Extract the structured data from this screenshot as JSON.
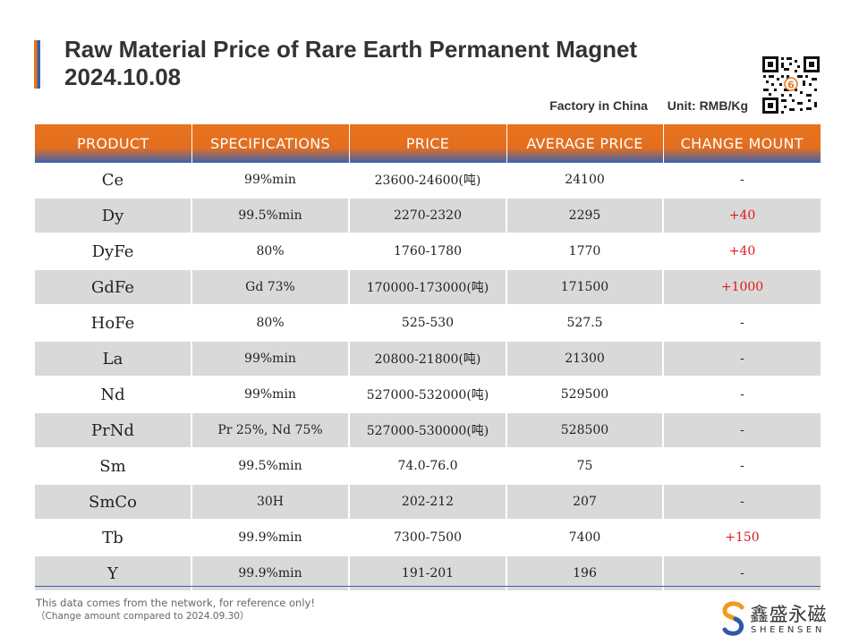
{
  "header": {
    "title_line1": "Raw Material Price of Rare Earth Permanent Magnet",
    "title_line2": "2024.10.08",
    "location": "Factory in China",
    "unit": "Unit: RMB/Kg"
  },
  "table": {
    "columns": [
      "PRODUCT",
      "SPECIFICATIONS",
      "PRICE",
      "AVERAGE PRICE",
      "CHANGE MOUNT"
    ],
    "rows": [
      {
        "product": "Ce",
        "spec": "99%min",
        "price": "23600-24600(吨)",
        "avg": "24100",
        "change": "-"
      },
      {
        "product": "Dy",
        "spec": "99.5%min",
        "price": "2270-2320",
        "avg": "2295",
        "change": "+40"
      },
      {
        "product": "DyFe",
        "spec": "80%",
        "price": "1760-1780",
        "avg": "1770",
        "change": "+40"
      },
      {
        "product": "GdFe",
        "spec": "Gd 73%",
        "price": "170000-173000(吨)",
        "avg": "171500",
        "change": "+1000"
      },
      {
        "product": "HoFe",
        "spec": "80%",
        "price": "525-530",
        "avg": "527.5",
        "change": "-"
      },
      {
        "product": "La",
        "spec": "99%min",
        "price": "20800-21800(吨)",
        "avg": "21300",
        "change": "-"
      },
      {
        "product": "Nd",
        "spec": "99%min",
        "price": "527000-532000(吨)",
        "avg": "529500",
        "change": "-"
      },
      {
        "product": "PrNd",
        "spec": "Pr 25%, Nd 75%",
        "price": "527000-530000(吨)",
        "avg": "528500",
        "change": "-"
      },
      {
        "product": "Sm",
        "spec": "99.5%min",
        "price": "74.0-76.0",
        "avg": "75",
        "change": "-"
      },
      {
        "product": "SmCo",
        "spec": "30H",
        "price": "202-212",
        "avg": "207",
        "change": "-"
      },
      {
        "product": "Tb",
        "spec": "99.9%min",
        "price": "7300-7500",
        "avg": "7400",
        "change": "+150"
      },
      {
        "product": "Y",
        "spec": "99.9%min",
        "price": "191-201",
        "avg": "196",
        "change": "-"
      }
    ]
  },
  "footer": {
    "note_line1": "This data comes from the network, for reference only!",
    "note_line2": "（Change amount compared to 2024.09.30）",
    "logo_cn": "鑫盛永磁",
    "logo_en": "SHEENSEN",
    "qr_badge": "6"
  },
  "colors": {
    "header_orange": "#e8731c",
    "header_blue": "#3b63b0",
    "increase_red": "#e0191b",
    "stripe_gray": "#d9d9d9"
  },
  "icons": {
    "qr": "qr-code-icon",
    "logo": "sheensen-logo-icon"
  }
}
